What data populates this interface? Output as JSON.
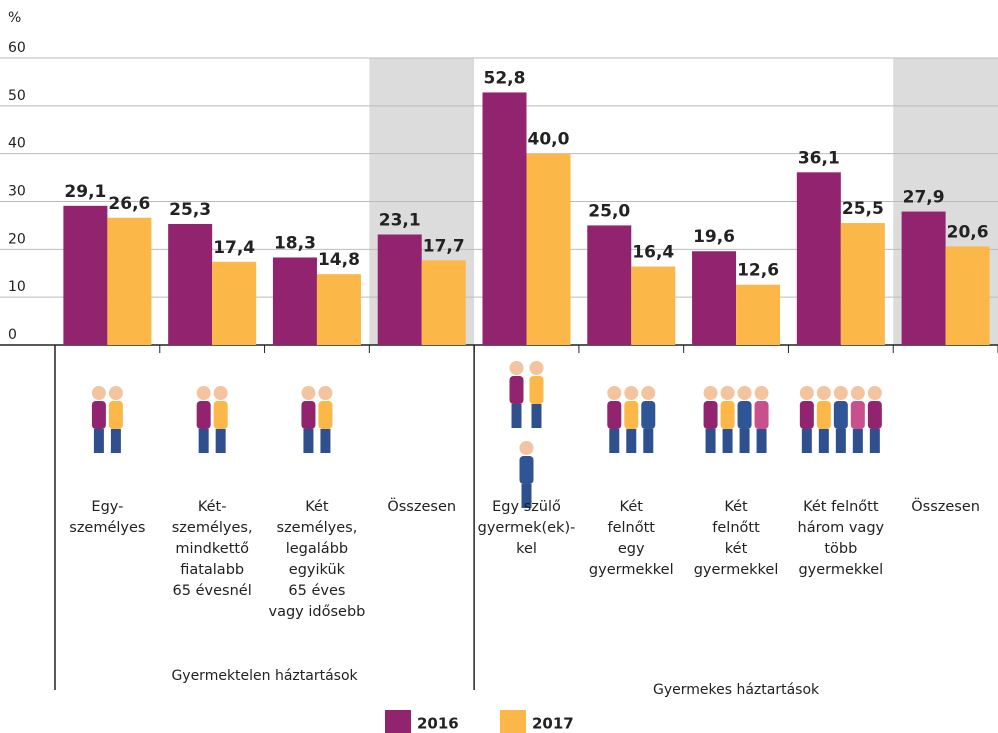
{
  "chart_data": {
    "type": "bar",
    "y_label": "%",
    "categories": [
      "Egy-\nszemélyes",
      "Két-\nszemélyes,\nmindkettő\nfiatalabb\n65 évesnél",
      "Két\nszemélyes,\nlegalább\negyikük\n65 éves\nvagy idősebb",
      "Összesen",
      "Egy szülő\ngyermek(ek)-\nkel",
      "Két\nfelnőtt\negy\ngyermekkel",
      "Két\nfelnőtt\nkét\ngyermekkel",
      "Két felnőtt\nhárom vagy\ntöbb\ngyermekkel",
      "Összesen"
    ],
    "groups": [
      {
        "label": "Gyermektelen háztartások",
        "size": 4
      },
      {
        "label": "Gyermekes háztartások",
        "size": 5
      }
    ],
    "highlighted_categories": [
      3,
      8
    ],
    "series": [
      {
        "name": "2016",
        "color": "#92246f",
        "values": [
          29.1,
          25.3,
          18.3,
          23.1,
          52.8,
          25.0,
          19.6,
          36.1,
          27.9
        ],
        "value_labels": [
          "29,1",
          "25,3",
          "18,3",
          "23,1",
          "52,8",
          "25,0",
          "19,6",
          "36,1",
          "27,9"
        ]
      },
      {
        "name": "2017",
        "color": "#fbb848",
        "values": [
          26.6,
          17.4,
          14.8,
          17.7,
          40.0,
          16.4,
          12.6,
          25.5,
          20.6
        ],
        "value_labels": [
          "26,6",
          "17,4",
          "14,8",
          "17,7",
          "40,0",
          "16,4",
          "12,6",
          "25,5",
          "20,6"
        ]
      }
    ],
    "ylim": [
      0,
      60
    ],
    "yticks": [
      0,
      10,
      20,
      30,
      40,
      50,
      60
    ],
    "grid": true
  }
}
